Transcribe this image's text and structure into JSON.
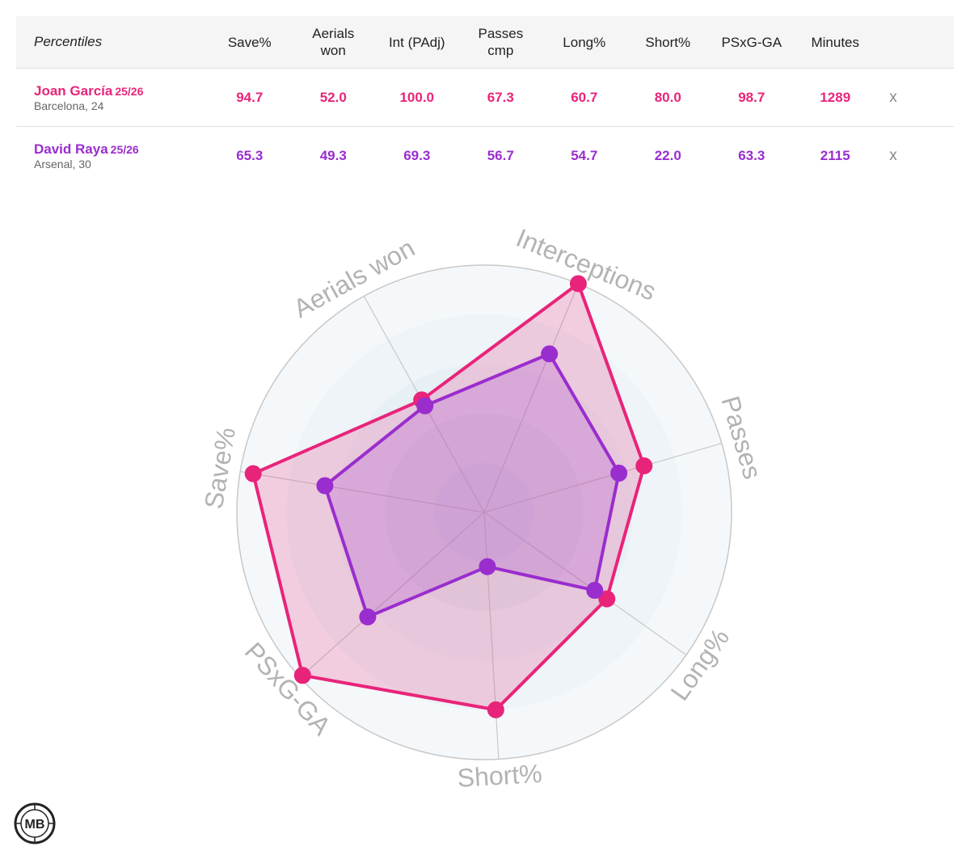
{
  "table": {
    "header": {
      "label": "Percentiles",
      "columns": [
        "Save%",
        "Aerials won",
        "Int (PAdj)",
        "Passes cmp",
        "Long%",
        "Short%",
        "PSxG-GA",
        "Minutes"
      ]
    },
    "players": [
      {
        "name": "Joan García",
        "season": "25/26",
        "club": "Barcelona, 24",
        "values": [
          "94.7",
          "52.0",
          "100.0",
          "67.3",
          "60.7",
          "80.0",
          "98.7",
          "1289"
        ],
        "remove": "x"
      },
      {
        "name": "David Raya",
        "season": "25/26",
        "club": "Arsenal, 30",
        "values": [
          "65.3",
          "49.3",
          "69.3",
          "56.7",
          "54.7",
          "22.0",
          "63.3",
          "2115"
        ],
        "remove": "x"
      }
    ]
  },
  "chart_data": {
    "type": "radar",
    "axes": [
      "Save%",
      "Aerials won",
      "Interceptions",
      "Passes",
      "Long%",
      "Short%",
      "PSxG-GA"
    ],
    "range": [
      0,
      100
    ],
    "series": [
      {
        "name": "Joan García",
        "color": "#e8247a",
        "values": [
          94.7,
          52.0,
          100.0,
          67.3,
          60.7,
          80.0,
          98.7
        ]
      },
      {
        "name": "David Raya",
        "color": "#9a2dce",
        "values": [
          65.3,
          49.3,
          69.3,
          56.7,
          54.7,
          22.0,
          63.3
        ]
      }
    ]
  },
  "logo": {
    "text": "MB"
  }
}
